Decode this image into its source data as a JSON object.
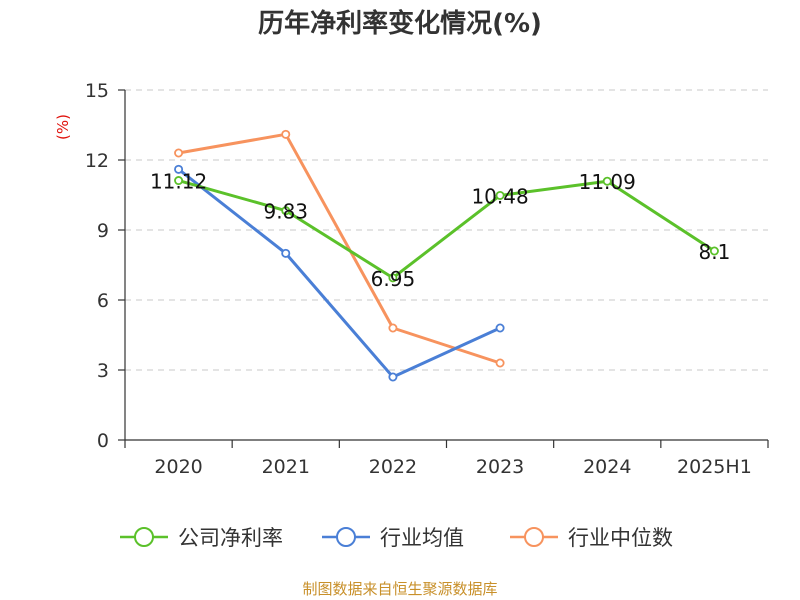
{
  "chart_data": {
    "type": "line",
    "title": "历年净利率变化情况(%)",
    "ylabel": "(%)",
    "categories": [
      "2020",
      "2021",
      "2022",
      "2023",
      "2024",
      "2025H1"
    ],
    "ylim": [
      0,
      15
    ],
    "yticks": [
      0,
      3,
      6,
      9,
      12,
      15
    ],
    "grid": true,
    "legend_position": "bottom",
    "series": [
      {
        "name": "公司净利率",
        "color": "#5bc12a",
        "values": [
          11.12,
          9.83,
          6.95,
          10.48,
          11.09,
          8.1
        ],
        "labels": [
          "11.12",
          "9.83",
          "6.95",
          "10.48",
          "11.09",
          "8.1"
        ]
      },
      {
        "name": "行业均值",
        "color": "#4a7fd6",
        "values": [
          11.6,
          8.0,
          2.7,
          4.8,
          null,
          null
        ]
      },
      {
        "name": "行业中位数",
        "color": "#f7935e",
        "values": [
          12.3,
          13.1,
          4.8,
          3.3,
          null,
          null
        ]
      }
    ]
  },
  "source": "制图数据来自恒生聚源数据库"
}
